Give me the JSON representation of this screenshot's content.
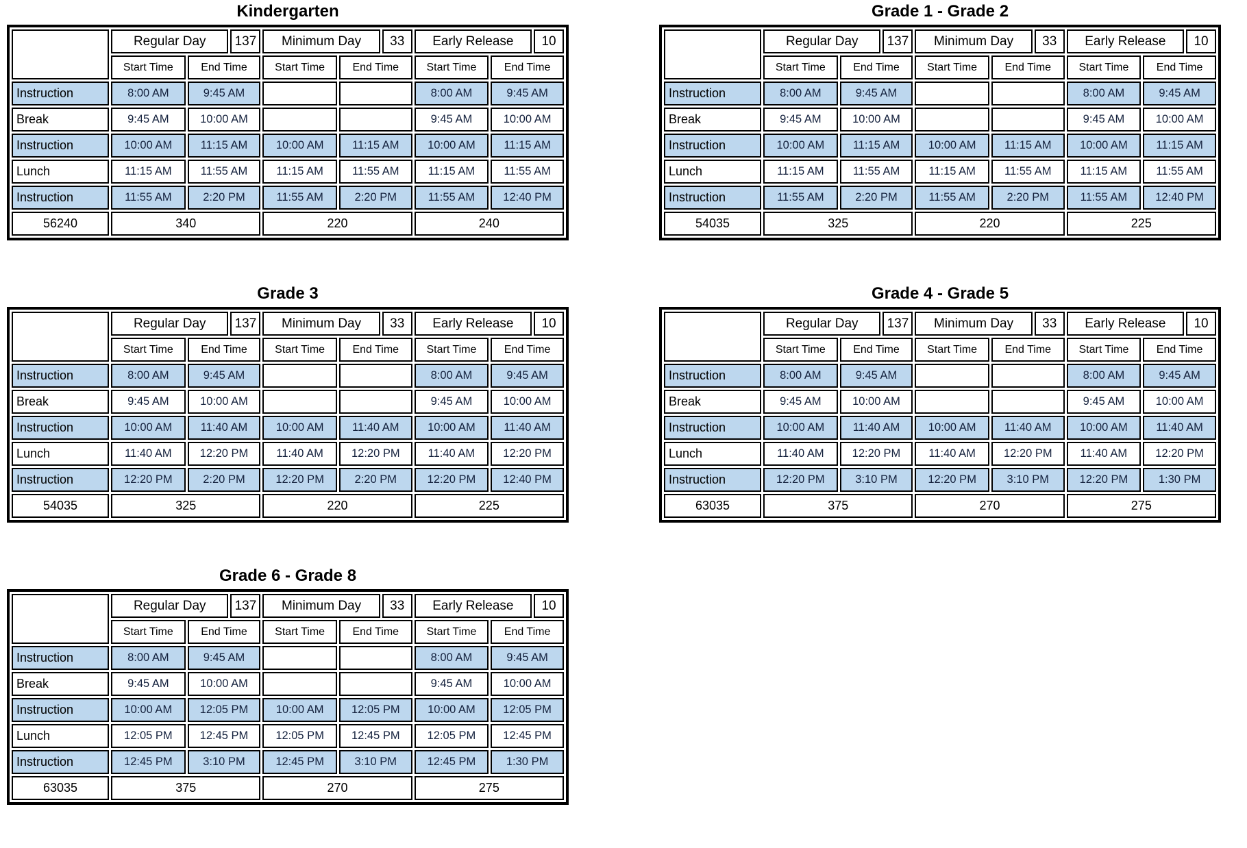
{
  "labels": {
    "start_time": "Start Time",
    "end_time": "End Time"
  },
  "colors": {
    "highlight_fill": "#bdd7ee",
    "border": "#000000",
    "background": "#ffffff"
  },
  "tables": [
    {
      "title": "Kindergarten",
      "total": "56240",
      "groups": [
        {
          "name": "Regular Day",
          "days": "137",
          "total": "340"
        },
        {
          "name": "Minimum Day",
          "days": "33",
          "total": "220"
        },
        {
          "name": "Early Release",
          "days": "10",
          "total": "240"
        }
      ],
      "rows": [
        {
          "label": "Instruction",
          "highlight": true,
          "times": [
            [
              "8:00 AM",
              "9:45 AM"
            ],
            [
              "",
              ""
            ],
            [
              "8:00 AM",
              "9:45 AM"
            ]
          ]
        },
        {
          "label": "Break",
          "highlight": false,
          "times": [
            [
              "9:45 AM",
              "10:00 AM"
            ],
            [
              "",
              ""
            ],
            [
              "9:45 AM",
              "10:00 AM"
            ]
          ]
        },
        {
          "label": "Instruction",
          "highlight": true,
          "times": [
            [
              "10:00 AM",
              "11:15 AM"
            ],
            [
              "10:00 AM",
              "11:15 AM"
            ],
            [
              "10:00 AM",
              "11:15 AM"
            ]
          ]
        },
        {
          "label": "Lunch",
          "highlight": false,
          "times": [
            [
              "11:15 AM",
              "11:55 AM"
            ],
            [
              "11:15 AM",
              "11:55 AM"
            ],
            [
              "11:15 AM",
              "11:55 AM"
            ]
          ]
        },
        {
          "label": "Instruction",
          "highlight": true,
          "times": [
            [
              "11:55 AM",
              "2:20 PM"
            ],
            [
              "11:55 AM",
              "2:20 PM"
            ],
            [
              "11:55 AM",
              "12:40 PM"
            ]
          ]
        }
      ]
    },
    {
      "title": "Grade 1 - Grade 2",
      "total": "54035",
      "groups": [
        {
          "name": "Regular Day",
          "days": "137",
          "total": "325"
        },
        {
          "name": "Minimum Day",
          "days": "33",
          "total": "220"
        },
        {
          "name": "Early Release",
          "days": "10",
          "total": "225"
        }
      ],
      "rows": [
        {
          "label": "Instruction",
          "highlight": true,
          "times": [
            [
              "8:00 AM",
              "9:45 AM"
            ],
            [
              "",
              ""
            ],
            [
              "8:00 AM",
              "9:45 AM"
            ]
          ]
        },
        {
          "label": "Break",
          "highlight": false,
          "times": [
            [
              "9:45 AM",
              "10:00 AM"
            ],
            [
              "",
              ""
            ],
            [
              "9:45 AM",
              "10:00 AM"
            ]
          ]
        },
        {
          "label": "Instruction",
          "highlight": true,
          "times": [
            [
              "10:00 AM",
              "11:15 AM"
            ],
            [
              "10:00 AM",
              "11:15 AM"
            ],
            [
              "10:00 AM",
              "11:15 AM"
            ]
          ]
        },
        {
          "label": "Lunch",
          "highlight": false,
          "times": [
            [
              "11:15 AM",
              "11:55 AM"
            ],
            [
              "11:15 AM",
              "11:55 AM"
            ],
            [
              "11:15 AM",
              "11:55 AM"
            ]
          ]
        },
        {
          "label": "Instruction",
          "highlight": true,
          "times": [
            [
              "11:55 AM",
              "2:20 PM"
            ],
            [
              "11:55 AM",
              "2:20 PM"
            ],
            [
              "11:55 AM",
              "12:40 PM"
            ]
          ]
        }
      ]
    },
    {
      "title": "Grade 3",
      "total": "54035",
      "groups": [
        {
          "name": "Regular Day",
          "days": "137",
          "total": "325"
        },
        {
          "name": "Minimum Day",
          "days": "33",
          "total": "220"
        },
        {
          "name": "Early Release",
          "days": "10",
          "total": "225"
        }
      ],
      "rows": [
        {
          "label": "Instruction",
          "highlight": true,
          "times": [
            [
              "8:00 AM",
              "9:45 AM"
            ],
            [
              "",
              ""
            ],
            [
              "8:00 AM",
              "9:45 AM"
            ]
          ]
        },
        {
          "label": "Break",
          "highlight": false,
          "times": [
            [
              "9:45 AM",
              "10:00 AM"
            ],
            [
              "",
              ""
            ],
            [
              "9:45 AM",
              "10:00 AM"
            ]
          ]
        },
        {
          "label": "Instruction",
          "highlight": true,
          "times": [
            [
              "10:00 AM",
              "11:40 AM"
            ],
            [
              "10:00 AM",
              "11:40 AM"
            ],
            [
              "10:00 AM",
              "11:40 AM"
            ]
          ]
        },
        {
          "label": "Lunch",
          "highlight": false,
          "times": [
            [
              "11:40 AM",
              "12:20 PM"
            ],
            [
              "11:40 AM",
              "12:20 PM"
            ],
            [
              "11:40 AM",
              "12:20 PM"
            ]
          ]
        },
        {
          "label": "Instruction",
          "highlight": true,
          "times": [
            [
              "12:20 PM",
              "2:20 PM"
            ],
            [
              "12:20 PM",
              "2:20 PM"
            ],
            [
              "12:20 PM",
              "12:40 PM"
            ]
          ]
        }
      ]
    },
    {
      "title": "Grade 4 - Grade 5",
      "total": "63035",
      "groups": [
        {
          "name": "Regular Day",
          "days": "137",
          "total": "375"
        },
        {
          "name": "Minimum Day",
          "days": "33",
          "total": "270"
        },
        {
          "name": "Early Release",
          "days": "10",
          "total": "275"
        }
      ],
      "rows": [
        {
          "label": "Instruction",
          "highlight": true,
          "times": [
            [
              "8:00 AM",
              "9:45 AM"
            ],
            [
              "",
              ""
            ],
            [
              "8:00 AM",
              "9:45 AM"
            ]
          ]
        },
        {
          "label": "Break",
          "highlight": false,
          "times": [
            [
              "9:45 AM",
              "10:00 AM"
            ],
            [
              "",
              ""
            ],
            [
              "9:45 AM",
              "10:00 AM"
            ]
          ]
        },
        {
          "label": "Instruction",
          "highlight": true,
          "times": [
            [
              "10:00 AM",
              "11:40 AM"
            ],
            [
              "10:00 AM",
              "11:40 AM"
            ],
            [
              "10:00 AM",
              "11:40 AM"
            ]
          ]
        },
        {
          "label": "Lunch",
          "highlight": false,
          "times": [
            [
              "11:40 AM",
              "12:20 PM"
            ],
            [
              "11:40 AM",
              "12:20 PM"
            ],
            [
              "11:40 AM",
              "12:20 PM"
            ]
          ]
        },
        {
          "label": "Instruction",
          "highlight": true,
          "times": [
            [
              "12:20 PM",
              "3:10 PM"
            ],
            [
              "12:20 PM",
              "3:10 PM"
            ],
            [
              "12:20 PM",
              "1:30 PM"
            ]
          ]
        }
      ]
    },
    {
      "title": "Grade 6 - Grade 8",
      "total": "63035",
      "groups": [
        {
          "name": "Regular Day",
          "days": "137",
          "total": "375"
        },
        {
          "name": "Minimum Day",
          "days": "33",
          "total": "270"
        },
        {
          "name": "Early Release",
          "days": "10",
          "total": "275"
        }
      ],
      "rows": [
        {
          "label": "Instruction",
          "highlight": true,
          "times": [
            [
              "8:00 AM",
              "9:45 AM"
            ],
            [
              "",
              ""
            ],
            [
              "8:00 AM",
              "9:45 AM"
            ]
          ]
        },
        {
          "label": "Break",
          "highlight": false,
          "times": [
            [
              "9:45 AM",
              "10:00 AM"
            ],
            [
              "",
              ""
            ],
            [
              "9:45 AM",
              "10:00 AM"
            ]
          ]
        },
        {
          "label": "Instruction",
          "highlight": true,
          "times": [
            [
              "10:00 AM",
              "12:05 PM"
            ],
            [
              "10:00 AM",
              "12:05 PM"
            ],
            [
              "10:00 AM",
              "12:05 PM"
            ]
          ]
        },
        {
          "label": "Lunch",
          "highlight": false,
          "times": [
            [
              "12:05 PM",
              "12:45 PM"
            ],
            [
              "12:05 PM",
              "12:45 PM"
            ],
            [
              "12:05 PM",
              "12:45 PM"
            ]
          ]
        },
        {
          "label": "Instruction",
          "highlight": true,
          "times": [
            [
              "12:45 PM",
              "3:10 PM"
            ],
            [
              "12:45 PM",
              "3:10 PM"
            ],
            [
              "12:45 PM",
              "1:30 PM"
            ]
          ]
        }
      ]
    }
  ]
}
